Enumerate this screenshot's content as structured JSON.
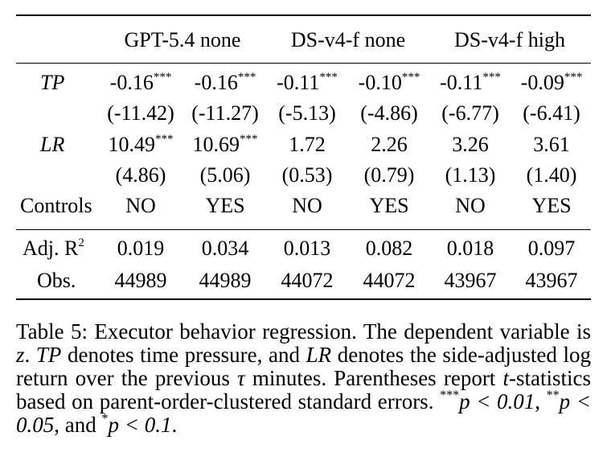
{
  "table": {
    "headers": [
      "GPT-5.4 none",
      "DS-v4-f none",
      "DS-v4-f high"
    ],
    "rows": [
      {
        "label": "TP",
        "cells": [
          "-0.16",
          "-0.16",
          "-0.11",
          "-0.10",
          "-0.11",
          "-0.09"
        ],
        "stars": [
          "***",
          "***",
          "***",
          "***",
          "***",
          "***"
        ]
      },
      {
        "label": "",
        "cells": [
          "(-11.42)",
          "(-11.27)",
          "(-5.13)",
          "(-4.86)",
          "(-6.77)",
          "(-6.41)"
        ]
      },
      {
        "label": "LR",
        "cells": [
          "10.49",
          "10.69",
          "1.72",
          "2.26",
          "3.26",
          "3.61"
        ],
        "stars": [
          "***",
          "***",
          "",
          "",
          "",
          ""
        ]
      },
      {
        "label": "",
        "cells": [
          "(4.86)",
          "(5.06)",
          "(0.53)",
          "(0.79)",
          "(1.13)",
          "(1.40)"
        ]
      },
      {
        "label": "Controls",
        "cells": [
          "NO",
          "YES",
          "NO",
          "YES",
          "NO",
          "YES"
        ]
      }
    ],
    "adj_r2": {
      "label": "Adj. R",
      "sup": "2",
      "cells": [
        "0.019",
        "0.034",
        "0.013",
        "0.082",
        "0.018",
        "0.097"
      ]
    },
    "obs": {
      "label": "Obs.",
      "cells": [
        "44989",
        "44989",
        "44072",
        "44072",
        "43967",
        "43967"
      ]
    }
  },
  "caption": {
    "t1": "Table 5: Executor behavior regression. The dependent variable is ",
    "m1": "z",
    "t2": ". ",
    "m2": "TP",
    "t3": " denotes time pressure, and ",
    "m3": "LR",
    "t4": " denotes the side-adjusted log return over the previous ",
    "m4": "τ",
    "t5": " minutes. Parentheses report ",
    "m5": "t",
    "t6": "-statistics based on parent-order-clustered standard errors. ",
    "s1": "***",
    "m6": "p < 0.01",
    "t7": ", ",
    "s2": "**",
    "m7": "p < 0.05",
    "t8": ", and ",
    "s3": "*",
    "m8": "p < 0.1",
    "t9": "."
  }
}
